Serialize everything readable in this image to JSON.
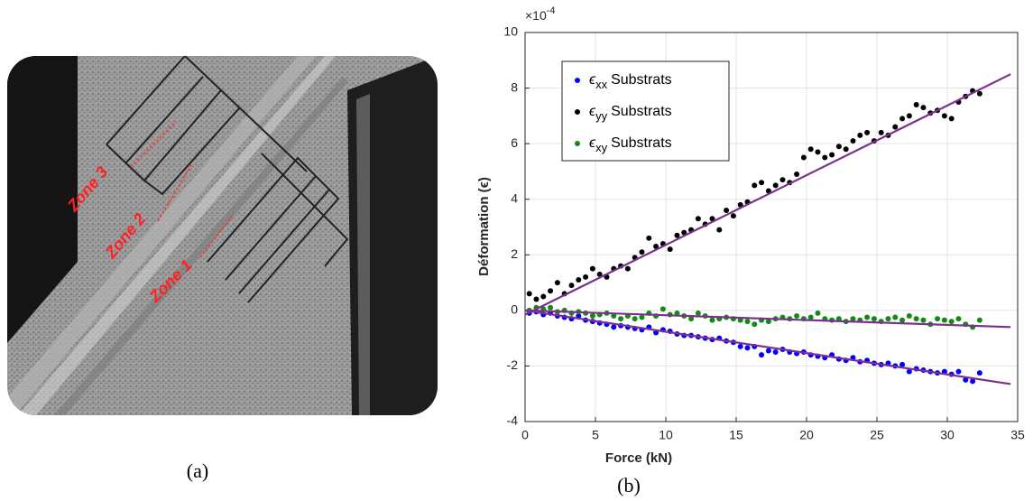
{
  "panel_a": {
    "zones": [
      "Zone 3",
      "Zone 2",
      "Zone 1"
    ],
    "caption": "(a)"
  },
  "chart_data": {
    "type": "scatter",
    "caption": "(b)",
    "x_label": "Force (kN)",
    "y_label": "Déformation (ϵ)",
    "y_multiplier": {
      "base": "×10",
      "exponent": "-4"
    },
    "xlim": [
      0,
      35
    ],
    "xticks": [
      0,
      5,
      10,
      15,
      20,
      25,
      30,
      35
    ],
    "ylim": [
      -4,
      10
    ],
    "yticks": [
      -4,
      -2,
      0,
      2,
      4,
      6,
      8,
      10
    ],
    "grid": true,
    "legend": "upper left",
    "x": [
      0.3,
      0.8,
      1.3,
      1.8,
      2.3,
      2.8,
      3.3,
      3.8,
      4.3,
      4.8,
      5.3,
      5.8,
      6.3,
      6.8,
      7.3,
      7.8,
      8.3,
      8.8,
      9.3,
      9.8,
      10.3,
      10.8,
      11.3,
      11.8,
      12.3,
      12.8,
      13.3,
      13.8,
      14.3,
      14.8,
      15.3,
      15.8,
      16.3,
      16.8,
      17.3,
      17.8,
      18.3,
      18.8,
      19.3,
      19.8,
      20.3,
      20.8,
      21.3,
      21.8,
      22.3,
      22.8,
      23.3,
      23.8,
      24.3,
      24.8,
      25.3,
      25.8,
      26.3,
      26.8,
      27.3,
      27.8,
      28.3,
      28.8,
      29.3,
      29.8,
      30.3,
      30.8,
      31.3,
      31.8,
      32.3
    ],
    "series": [
      {
        "symbol": "ϵ",
        "subscript": "xx",
        "name": "Substrats",
        "color": "#0000ff",
        "values": [
          -0.1,
          -0.05,
          -0.15,
          -0.1,
          -0.2,
          -0.25,
          -0.3,
          -0.2,
          -0.35,
          -0.4,
          -0.45,
          -0.5,
          -0.6,
          -0.55,
          -0.6,
          -0.65,
          -0.7,
          -0.6,
          -0.8,
          -0.7,
          -0.75,
          -0.85,
          -0.9,
          -0.9,
          -0.95,
          -1.0,
          -1.05,
          -1.0,
          -1.1,
          -1.15,
          -1.3,
          -1.35,
          -1.3,
          -1.6,
          -1.45,
          -1.5,
          -1.4,
          -1.5,
          -1.55,
          -1.5,
          -1.6,
          -1.65,
          -1.7,
          -1.6,
          -1.75,
          -1.8,
          -1.7,
          -1.85,
          -1.8,
          -1.9,
          -1.95,
          -1.9,
          -2.0,
          -1.95,
          -2.2,
          -2.1,
          -2.15,
          -2.2,
          -2.25,
          -2.2,
          -2.3,
          -2.2,
          -2.5,
          -2.55,
          -2.25
        ]
      },
      {
        "symbol": "ϵ",
        "subscript": "yy",
        "name": "Substrats",
        "color": "#000000",
        "values": [
          0.6,
          0.4,
          0.5,
          0.7,
          1.0,
          0.6,
          0.9,
          1.1,
          1.2,
          1.5,
          1.3,
          1.2,
          1.5,
          1.6,
          1.5,
          1.9,
          2.1,
          2.6,
          2.3,
          2.4,
          2.2,
          2.7,
          2.8,
          2.9,
          3.3,
          3.1,
          3.3,
          2.9,
          3.6,
          3.4,
          3.8,
          3.9,
          4.5,
          4.6,
          4.3,
          4.5,
          4.7,
          4.6,
          4.9,
          5.5,
          5.8,
          5.7,
          5.5,
          5.6,
          5.9,
          5.8,
          6.1,
          6.3,
          6.4,
          6.1,
          6.4,
          6.3,
          6.6,
          6.9,
          7.0,
          7.4,
          7.3,
          7.1,
          7.2,
          7.0,
          6.9,
          7.5,
          7.7,
          7.9,
          7.8
        ]
      },
      {
        "symbol": "ϵ",
        "subscript": "xy",
        "name": "Substrats",
        "color": "#138a13",
        "values": [
          0.0,
          0.1,
          0.05,
          0.1,
          -0.05,
          0.0,
          -0.1,
          -0.05,
          -0.1,
          -0.2,
          -0.15,
          -0.1,
          -0.2,
          -0.3,
          -0.2,
          -0.3,
          -0.25,
          -0.1,
          -0.2,
          0.05,
          -0.15,
          -0.1,
          -0.2,
          -0.3,
          -0.1,
          -0.2,
          -0.35,
          -0.3,
          -0.25,
          -0.3,
          -0.35,
          -0.4,
          -0.5,
          -0.35,
          -0.4,
          -0.3,
          -0.25,
          -0.3,
          -0.2,
          -0.3,
          -0.25,
          -0.1,
          -0.3,
          -0.35,
          -0.3,
          -0.4,
          -0.3,
          -0.35,
          -0.25,
          -0.3,
          -0.4,
          -0.3,
          -0.25,
          -0.35,
          -0.2,
          -0.3,
          -0.35,
          -0.5,
          -0.3,
          -0.35,
          -0.4,
          -0.3,
          -0.5,
          -0.6,
          -0.35
        ]
      }
    ],
    "fits": [
      {
        "color": "#7e2f8e",
        "x": [
          0,
          34.5
        ],
        "values": [
          0,
          -2.65
        ]
      },
      {
        "color": "#7e2f8e",
        "x": [
          0,
          34.5
        ],
        "values": [
          -0.15,
          8.5
        ]
      },
      {
        "color": "#7e2f8e",
        "x": [
          0,
          34.5
        ],
        "values": [
          0,
          -0.6
        ]
      }
    ]
  }
}
